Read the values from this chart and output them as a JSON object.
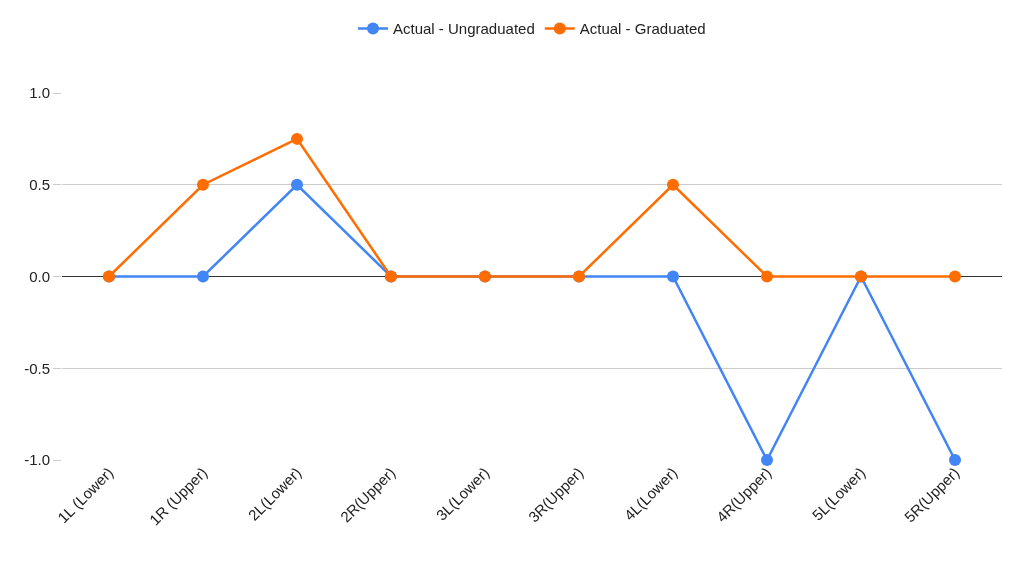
{
  "chart_data": {
    "type": "line",
    "categories": [
      "1L (Lower)",
      "1R (Upper)",
      "2L(Lower)",
      "2R(Upper)",
      "3L(Lower)",
      "3R(Upper)",
      "4L(Lower)",
      "4R(Upper)",
      "5L(Lower)",
      "5R(Upper)"
    ],
    "series": [
      {
        "name": "Actual - Ungraduated",
        "color": "#4285f4",
        "values": [
          0,
          0,
          0.5,
          0,
          0,
          0,
          0,
          -1,
          0,
          -1
        ]
      },
      {
        "name": "Actual - Graduated",
        "color": "#ff6d01",
        "values": [
          0,
          0.5,
          0.75,
          0,
          0,
          0,
          0.5,
          0,
          0,
          0
        ]
      }
    ],
    "ylim": [
      -1,
      1
    ],
    "yticks": [
      {
        "value": -1,
        "label": "-1.0"
      },
      {
        "value": -0.5,
        "label": "-0.5"
      },
      {
        "value": 0,
        "label": "0.0"
      },
      {
        "value": 0.5,
        "label": "0.5"
      },
      {
        "value": 1,
        "label": "1.0"
      }
    ],
    "grid": "y",
    "legend": "top",
    "marker": "circle",
    "line_style": "solid"
  }
}
